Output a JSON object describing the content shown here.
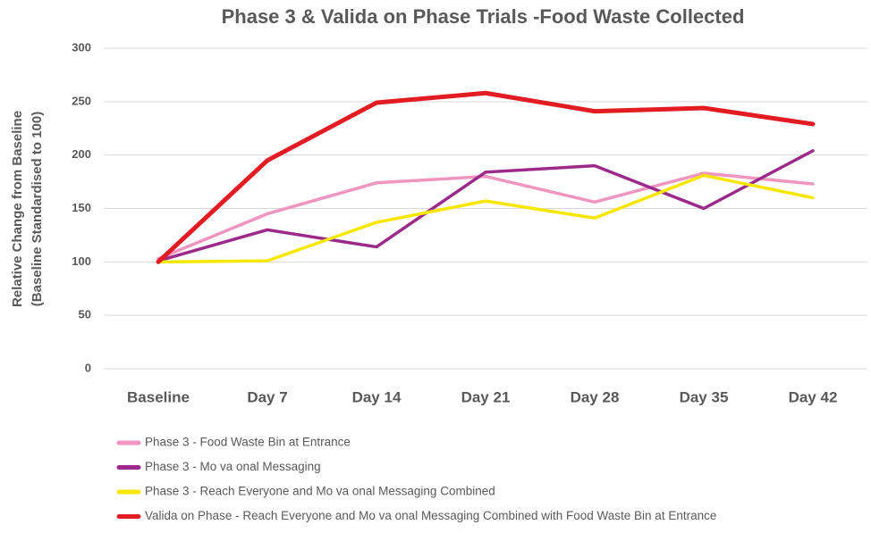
{
  "chart_data": {
    "type": "line",
    "title": "Phase 3 & Valida on Phase Trials -Food Waste Collected",
    "ylabel": [
      "Relative Change from Baseline",
      "(Baseline Standardised to 100)"
    ],
    "categories": [
      "Baseline",
      "Day 7",
      "Day 14",
      "Day 21",
      "Day 28",
      "Day 35",
      "Day 42"
    ],
    "series": [
      {
        "name": "Phase 3 - Food Waste Bin at Entrance",
        "color": "#f095c0",
        "values": [
          103,
          145,
          174,
          180,
          156,
          183,
          173
        ]
      },
      {
        "name": "Phase 3 - Mo va onal Messaging",
        "color": "#9b2a8a",
        "values": [
          101,
          130,
          114,
          184,
          190,
          150,
          204
        ]
      },
      {
        "name": "Phase 3 - Reach Everyone and Mo va onal Messaging Combined",
        "color": "#f7e600",
        "values": [
          100,
          101,
          137,
          157,
          141,
          181,
          160
        ]
      },
      {
        "name": "Valida on Phase - Reach Everyone and Mo va onal Messaging Combined with Food Waste Bin at Entrance",
        "color": "#e31b23",
        "values": [
          100,
          195,
          249,
          258,
          241,
          244,
          229
        ]
      }
    ],
    "ylim": [
      0,
      300
    ],
    "yticks": [
      0,
      50,
      100,
      150,
      200,
      250,
      300
    ],
    "grid": true,
    "legend": "bottom"
  }
}
